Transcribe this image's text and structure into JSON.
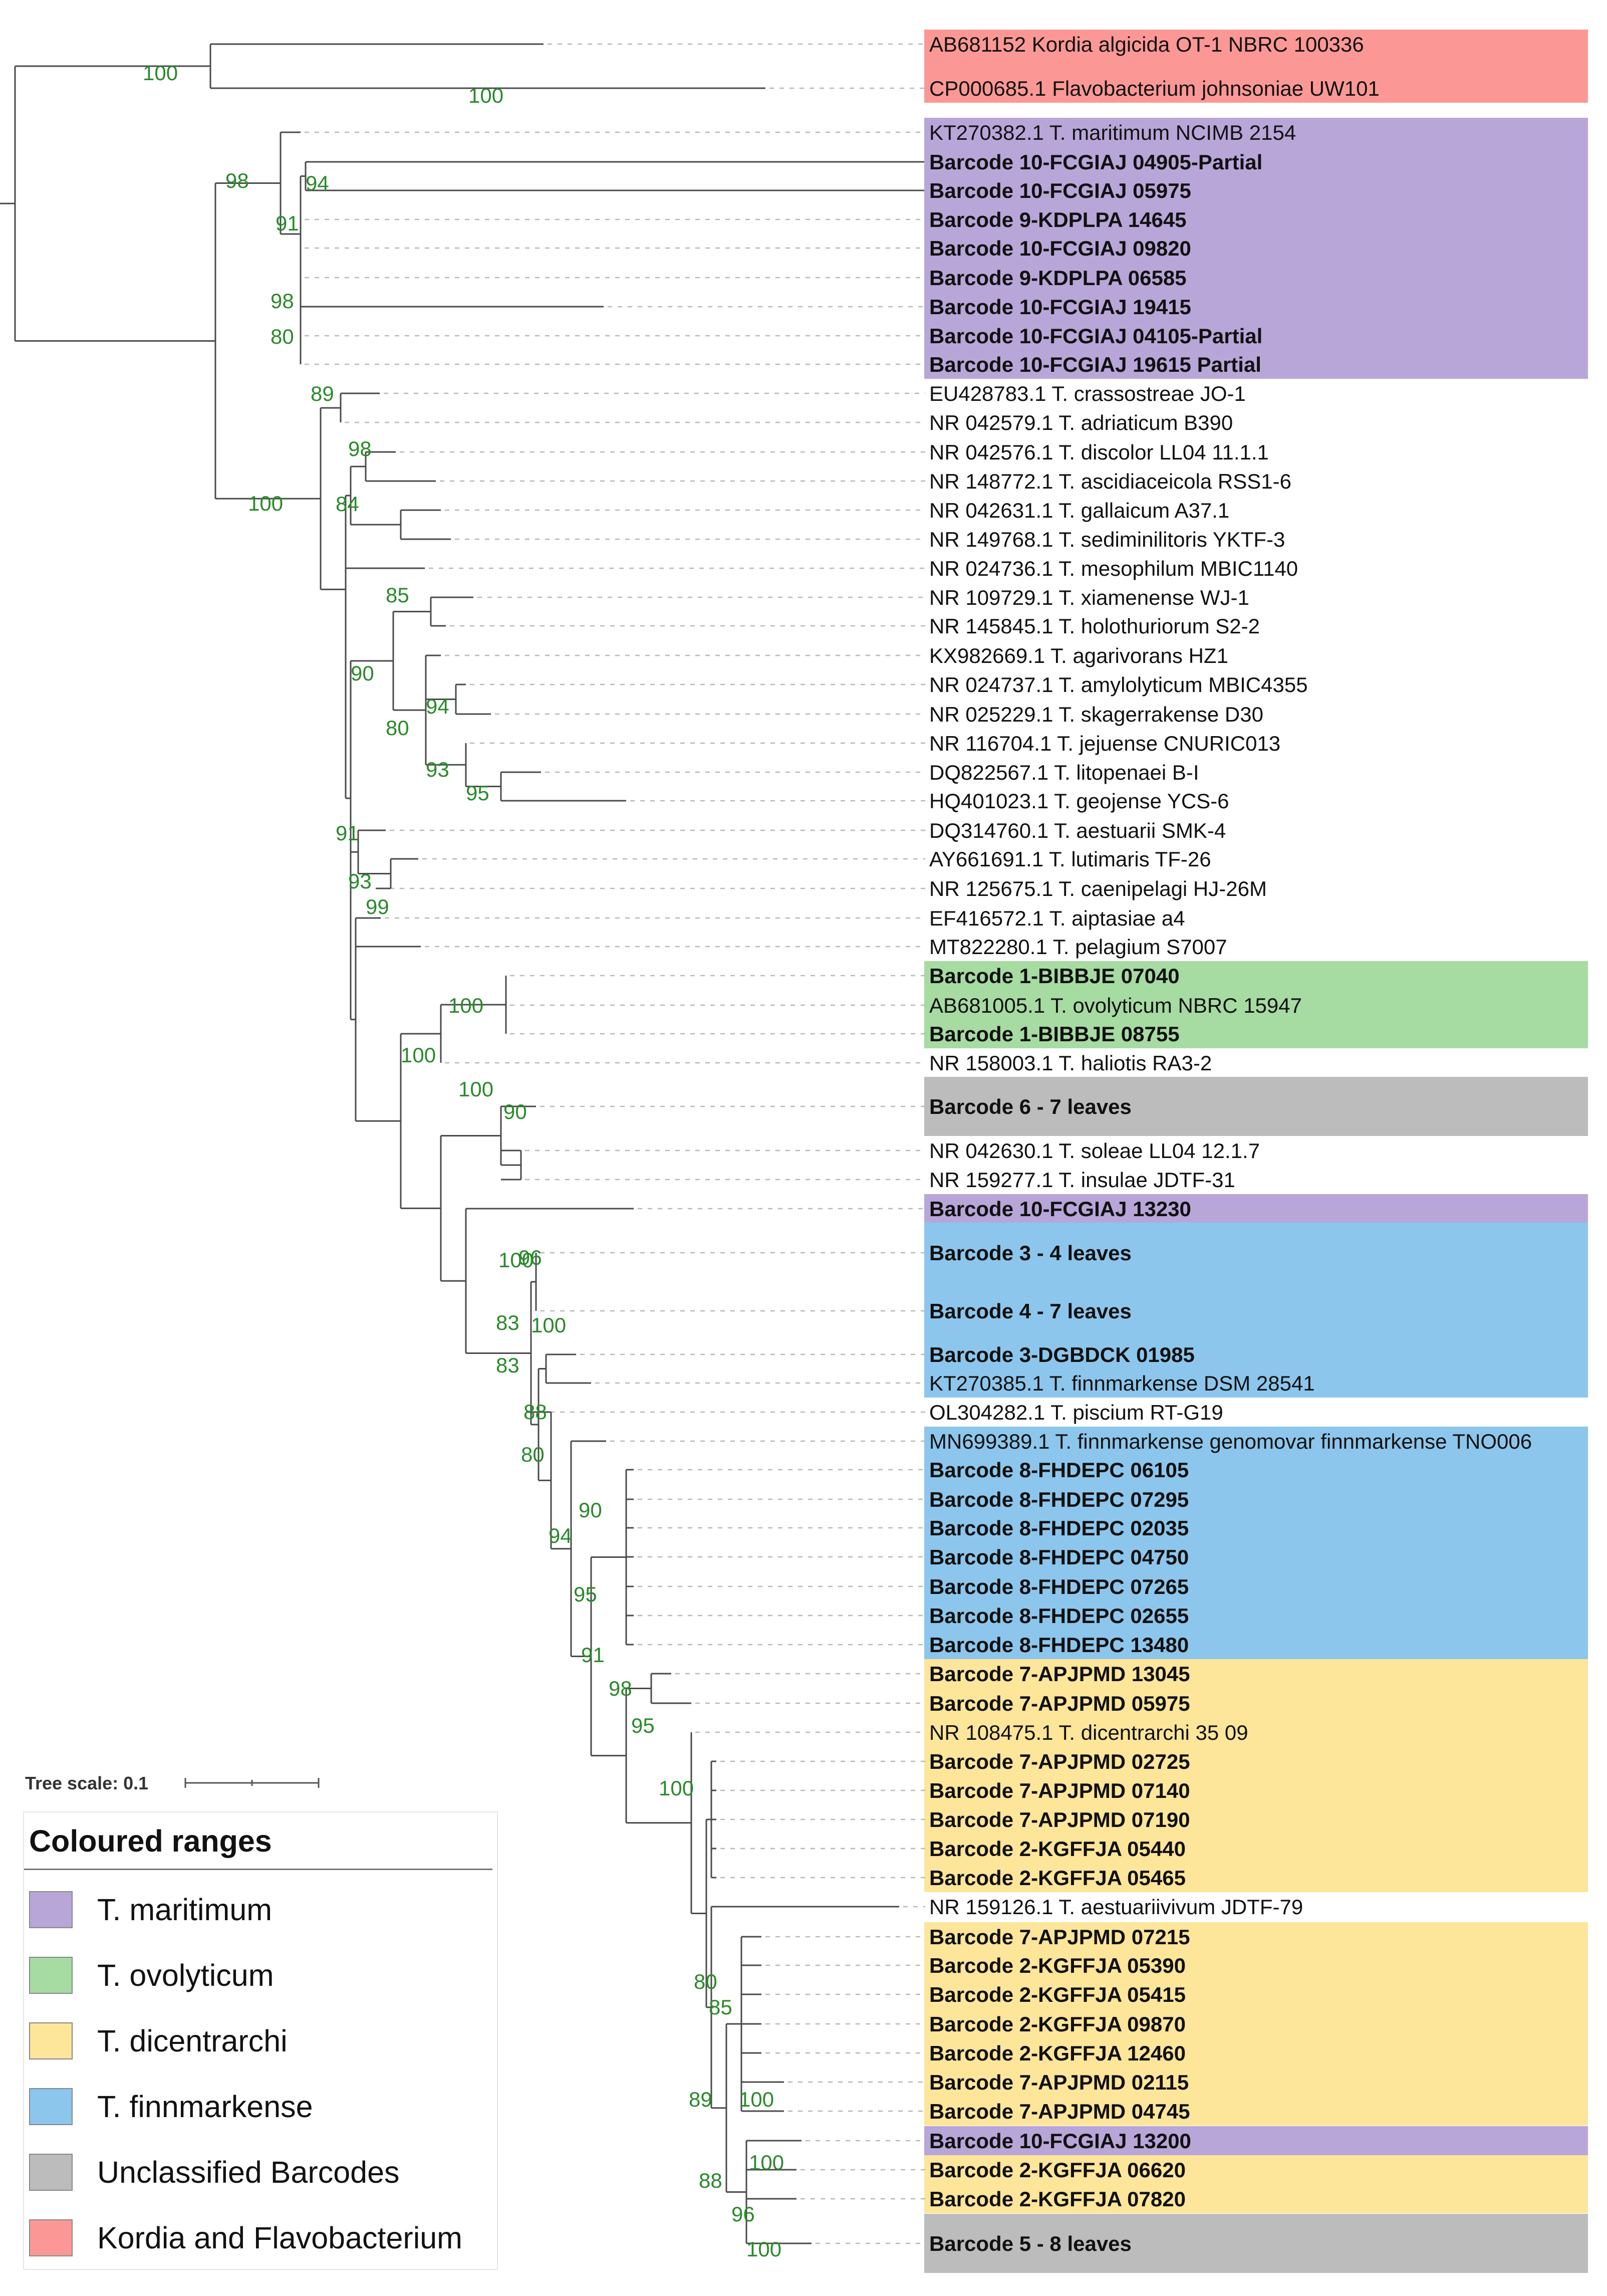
{
  "colors": {
    "red": "#fb9896",
    "purple": "#b8a6d8",
    "green": "#a6dba2",
    "yellow": "#fde59a",
    "blue": "#8cc6ec",
    "grey": "#bcbcbc",
    "branch": "#4a4a4a",
    "support": "#2a8a2a",
    "dash": "#b8b8b8"
  },
  "leaves": [
    {
      "label": "AB681152 Kordia algicida OT-1 NBRC 100336",
      "bold": false
    },
    {
      "label": "CP000685.1 Flavobacterium johnsoniae UW101",
      "bold": false
    },
    {
      "label": "KT270382.1 T. maritimum NCIMB 2154",
      "bold": false
    },
    {
      "label": "Barcode 10-FCGIAJ 04905-Partial",
      "bold": true
    },
    {
      "label": "Barcode 10-FCGIAJ 05975",
      "bold": true
    },
    {
      "label": "Barcode 9-KDPLPA 14645",
      "bold": true
    },
    {
      "label": "Barcode 10-FCGIAJ 09820",
      "bold": true
    },
    {
      "label": "Barcode 9-KDPLPA 06585",
      "bold": true
    },
    {
      "label": "Barcode 10-FCGIAJ 19415",
      "bold": true
    },
    {
      "label": "Barcode 10-FCGIAJ 04105-Partial",
      "bold": true
    },
    {
      "label": "Barcode 10-FCGIAJ 19615 Partial",
      "bold": true
    },
    {
      "label": "EU428783.1 T. crassostreae JO-1",
      "bold": false
    },
    {
      "label": "NR 042579.1 T. adriaticum B390",
      "bold": false
    },
    {
      "label": "NR 042576.1 T. discolor LL04 11.1.1",
      "bold": false
    },
    {
      "label": "NR 148772.1 T. ascidiaceicola RSS1-6",
      "bold": false
    },
    {
      "label": "NR 042631.1 T. gallaicum A37.1",
      "bold": false
    },
    {
      "label": "NR 149768.1 T. sediminilitoris YKTF-3",
      "bold": false
    },
    {
      "label": "NR 024736.1 T. mesophilum MBIC1140",
      "bold": false
    },
    {
      "label": "NR 109729.1 T. xiamenense WJ-1",
      "bold": false
    },
    {
      "label": "NR 145845.1 T. holothuriorum S2-2",
      "bold": false
    },
    {
      "label": "KX982669.1 T. agarivorans HZ1",
      "bold": false
    },
    {
      "label": "NR 024737.1 T. amylolyticum MBIC4355",
      "bold": false
    },
    {
      "label": "NR 025229.1 T. skagerrakense D30",
      "bold": false
    },
    {
      "label": "NR 116704.1 T. jejuense CNURIC013",
      "bold": false
    },
    {
      "label": "DQ822567.1 T. litopenaei B-I",
      "bold": false
    },
    {
      "label": "HQ401023.1 T. geojense YCS-6",
      "bold": false
    },
    {
      "label": "DQ314760.1 T. aestuarii SMK-4",
      "bold": false
    },
    {
      "label": "AY661691.1 T. lutimaris TF-26",
      "bold": false
    },
    {
      "label": "NR 125675.1 T. caenipelagi HJ-26M",
      "bold": false
    },
    {
      "label": "EF416572.1 T. aiptasiae a4",
      "bold": false
    },
    {
      "label": "MT822280.1 T. pelagium S7007",
      "bold": false
    },
    {
      "label": "Barcode 1-BIBBJE 07040",
      "bold": true
    },
    {
      "label": "AB681005.1 T. ovolyticum NBRC 15947",
      "bold": false
    },
    {
      "label": "Barcode 1-BIBBJE 08755",
      "bold": true
    },
    {
      "label": "NR 158003.1 T. haliotis RA3-2",
      "bold": false
    },
    {
      "label": "Barcode 6 - 7 leaves",
      "bold": true
    },
    {
      "label": "NR 042630.1 T. soleae LL04 12.1.7",
      "bold": false
    },
    {
      "label": "NR 159277.1 T. insulae JDTF-31",
      "bold": false
    },
    {
      "label": "Barcode 10-FCGIAJ 13230",
      "bold": true
    },
    {
      "label": "Barcode 3 - 4 leaves",
      "bold": true
    },
    {
      "label": "Barcode 4 - 7 leaves",
      "bold": true
    },
    {
      "label": "Barcode 3-DGBDCK 01985",
      "bold": true
    },
    {
      "label": "KT270385.1 T. finnmarkense DSM 28541",
      "bold": false
    },
    {
      "label": "OL304282.1 T. piscium RT-G19",
      "bold": false
    },
    {
      "label": "MN699389.1 T. finnmarkense genomovar finnmarkense TNO006",
      "bold": false
    },
    {
      "label": "Barcode 8-FHDEPC 06105",
      "bold": true
    },
    {
      "label": "Barcode 8-FHDEPC 07295",
      "bold": true
    },
    {
      "label": "Barcode 8-FHDEPC 02035",
      "bold": true
    },
    {
      "label": "Barcode 8-FHDEPC 04750",
      "bold": true
    },
    {
      "label": "Barcode 8-FHDEPC 07265",
      "bold": true
    },
    {
      "label": "Barcode 8-FHDEPC 02655",
      "bold": true
    },
    {
      "label": "Barcode 8-FHDEPC 13480",
      "bold": true
    },
    {
      "label": "Barcode 7-APJPMD 13045",
      "bold": true
    },
    {
      "label": "Barcode 7-APJPMD 05975",
      "bold": true
    },
    {
      "label": "NR 108475.1 T. dicentrarchi 35 09",
      "bold": false
    },
    {
      "label": "Barcode 7-APJPMD 02725",
      "bold": true
    },
    {
      "label": "Barcode 7-APJPMD 07140",
      "bold": true
    },
    {
      "label": "Barcode 7-APJPMD 07190",
      "bold": true
    },
    {
      "label": "Barcode 2-KGFFJA 05440",
      "bold": true
    },
    {
      "label": "Barcode 2-KGFFJA 05465",
      "bold": true
    },
    {
      "label": "NR 159126.1 T. aestuariivivum JDTF-79",
      "bold": false
    },
    {
      "label": "Barcode 7-APJPMD 07215",
      "bold": true
    },
    {
      "label": "Barcode 2-KGFFJA 05390",
      "bold": true
    },
    {
      "label": "Barcode 2-KGFFJA 05415",
      "bold": true
    },
    {
      "label": "Barcode 2-KGFFJA 09870",
      "bold": true
    },
    {
      "label": "Barcode 2-KGFFJA 12460",
      "bold": true
    },
    {
      "label": "Barcode 7-APJPMD 02115",
      "bold": true
    },
    {
      "label": "Barcode 7-APJPMD 04745",
      "bold": true
    },
    {
      "label": "Barcode 10-FCGIAJ 13200",
      "bold": true
    },
    {
      "label": "Barcode 2-KGFFJA 06620",
      "bold": true
    },
    {
      "label": "Barcode 2-KGFFJA 07820",
      "bold": true
    },
    {
      "label": "Barcode 5 - 8 leaves",
      "bold": true
    }
  ],
  "ranges": [
    {
      "first": 0,
      "last": 1,
      "color": "red"
    },
    {
      "first": 2,
      "last": 10,
      "color": "purple"
    },
    {
      "first": 31,
      "last": 33,
      "color": "green"
    },
    {
      "first": 35,
      "last": 35,
      "color": "grey"
    },
    {
      "first": 38,
      "last": 38,
      "color": "purple"
    },
    {
      "first": 39,
      "last": 42,
      "color": "blue"
    },
    {
      "first": 44,
      "last": 51,
      "color": "blue"
    },
    {
      "first": 52,
      "last": 59,
      "color": "yellow"
    },
    {
      "first": 61,
      "last": 67,
      "color": "yellow"
    },
    {
      "first": 68,
      "last": 68,
      "color": "purple"
    },
    {
      "first": 69,
      "last": 70,
      "color": "yellow"
    },
    {
      "first": 71,
      "last": 71,
      "color": "grey"
    }
  ],
  "supports": [
    "100",
    "100",
    "98",
    "94",
    "91",
    "98",
    "80",
    "89",
    "100",
    "98",
    "84",
    "85",
    "90",
    "94",
    "80",
    "93",
    "95",
    "91",
    "93",
    "99",
    "100",
    "100",
    "100",
    "90",
    "100",
    "96",
    "83",
    "100",
    "83",
    "88",
    "80",
    "90",
    "94",
    "95",
    "91",
    "98",
    "95",
    "100",
    "80",
    "85",
    "89",
    "100",
    "100",
    "88",
    "96",
    "100"
  ],
  "tree_scale": {
    "label": "Tree scale: 0.1"
  },
  "legend": {
    "title": "Coloured ranges",
    "items": [
      {
        "label": "T. maritimum",
        "color": "purple"
      },
      {
        "label": "T. ovolyticum",
        "color": "green"
      },
      {
        "label": "T. dicentrarchi",
        "color": "yellow"
      },
      {
        "label": "T. finnmarkense",
        "color": "blue"
      },
      {
        "label": "Unclassified Barcodes",
        "color": "grey"
      },
      {
        "label": "Kordia and Flavobacterium",
        "color": "red"
      }
    ]
  }
}
